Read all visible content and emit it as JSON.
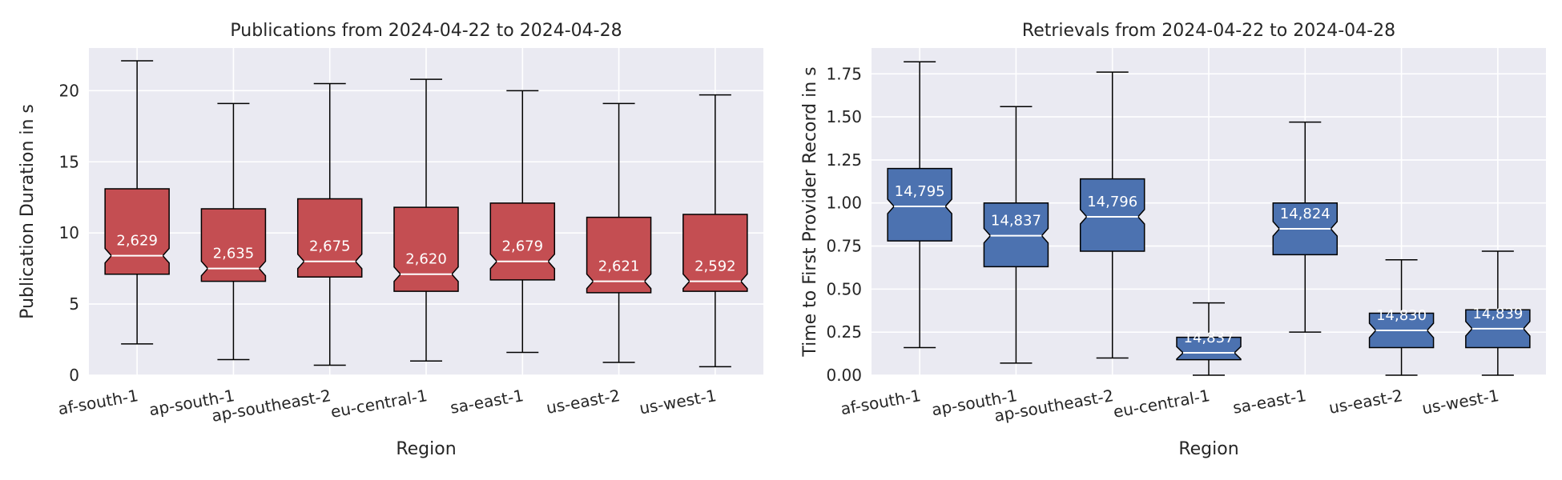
{
  "chart_data": [
    {
      "type": "box",
      "title": "Publications from 2024-04-22 to 2024-04-28",
      "xlabel": "Region",
      "ylabel": "Publication Duration in s",
      "ylim": [
        0,
        23
      ],
      "yticks": [
        0,
        5,
        10,
        15,
        20
      ],
      "notched": true,
      "color": "#c44e52",
      "categories": [
        "af-south-1",
        "ap-south-1",
        "ap-southeast-2",
        "eu-central-1",
        "sa-east-1",
        "us-east-2",
        "us-west-1"
      ],
      "boxes": [
        {
          "whislo": 2.2,
          "q1": 7.1,
          "med": 8.4,
          "q3": 13.1,
          "whishi": 22.1,
          "count": "2,629"
        },
        {
          "whislo": 1.1,
          "q1": 6.6,
          "med": 7.5,
          "q3": 11.7,
          "whishi": 19.1,
          "count": "2,635"
        },
        {
          "whislo": 0.7,
          "q1": 6.9,
          "med": 8.0,
          "q3": 12.4,
          "whishi": 20.5,
          "count": "2,675"
        },
        {
          "whislo": 1.0,
          "q1": 5.9,
          "med": 7.1,
          "q3": 11.8,
          "whishi": 20.8,
          "count": "2,620"
        },
        {
          "whislo": 1.6,
          "q1": 6.7,
          "med": 8.0,
          "q3": 12.1,
          "whishi": 20.0,
          "count": "2,679"
        },
        {
          "whislo": 0.9,
          "q1": 5.8,
          "med": 6.6,
          "q3": 11.1,
          "whishi": 19.1,
          "count": "2,621"
        },
        {
          "whislo": 0.6,
          "q1": 5.9,
          "med": 6.6,
          "q3": 11.3,
          "whishi": 19.7,
          "count": "2,592"
        }
      ],
      "grid": true
    },
    {
      "type": "box",
      "title": "Retrievals from 2024-04-22 to 2024-04-28",
      "xlabel": "Region",
      "ylabel": "Time to First Provider Record in s",
      "ylim": [
        0,
        1.9
      ],
      "yticks": [
        "0.00",
        "0.25",
        "0.50",
        "0.75",
        "1.00",
        "1.25",
        "1.50",
        "1.75"
      ],
      "notched": true,
      "color": "#4c72b0",
      "categories": [
        "af-south-1",
        "ap-south-1",
        "ap-southeast-2",
        "eu-central-1",
        "sa-east-1",
        "us-east-2",
        "us-west-1"
      ],
      "boxes": [
        {
          "whislo": 0.16,
          "q1": 0.78,
          "med": 0.98,
          "q3": 1.2,
          "whishi": 1.82,
          "count": "14,795"
        },
        {
          "whislo": 0.07,
          "q1": 0.63,
          "med": 0.81,
          "q3": 1.0,
          "whishi": 1.56,
          "count": "14,837"
        },
        {
          "whislo": 0.1,
          "q1": 0.72,
          "med": 0.92,
          "q3": 1.14,
          "whishi": 1.76,
          "count": "14,796"
        },
        {
          "whislo": 0.0,
          "q1": 0.09,
          "med": 0.13,
          "q3": 0.22,
          "whishi": 0.42,
          "count": "14,837"
        },
        {
          "whislo": 0.25,
          "q1": 0.7,
          "med": 0.85,
          "q3": 1.0,
          "whishi": 1.47,
          "count": "14,824"
        },
        {
          "whislo": 0.0,
          "q1": 0.16,
          "med": 0.26,
          "q3": 0.36,
          "whishi": 0.67,
          "count": "14,830"
        },
        {
          "whislo": 0.0,
          "q1": 0.16,
          "med": 0.27,
          "q3": 0.38,
          "whishi": 0.72,
          "count": "14,839"
        }
      ],
      "grid": true
    }
  ]
}
